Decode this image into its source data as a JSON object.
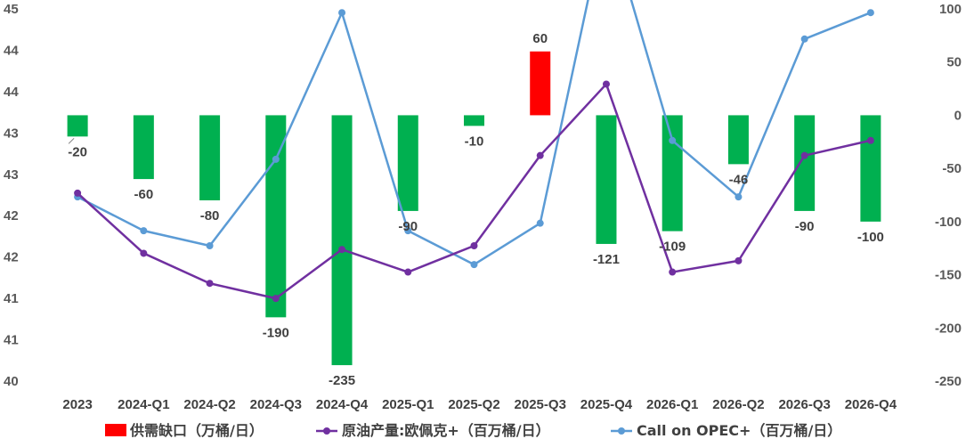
{
  "chart_data": {
    "type": "bar",
    "categories": [
      "2023",
      "2024-Q1",
      "2024-Q2",
      "2024-Q3",
      "2024-Q4",
      "2025-Q1",
      "2025-Q2",
      "2025-Q3",
      "2025-Q4",
      "2026-Q1",
      "2026-Q2",
      "2026-Q3",
      "2026-Q4"
    ],
    "left_axis": {
      "ticks": [
        "45",
        "44",
        "44",
        "43",
        "43",
        "42",
        "42",
        "41",
        "41",
        "40"
      ],
      "ylim": [
        40,
        44.95
      ]
    },
    "right_axis": {
      "ticks": [
        "100",
        "50",
        "0",
        "-50",
        "-100",
        "-150",
        "-200",
        "-250"
      ],
      "ylim": [
        -250,
        100
      ]
    },
    "series": [
      {
        "name": "供需缺口（万桶/日）",
        "type": "bar",
        "axis": "right",
        "values": [
          -20,
          -60,
          -80,
          -190,
          -235,
          -90,
          -10,
          60,
          -121,
          -109,
          -46,
          -90,
          -100
        ],
        "data_labels": [
          "-20",
          "-60",
          "-80",
          "-190",
          "-235",
          "-90",
          "-10",
          "60",
          "-121",
          "-109",
          "-46",
          "-90",
          "-100"
        ],
        "color_negative": "#00B050",
        "color_positive": "#FF0000"
      },
      {
        "name": "原油产量:欧佩克+（百万桶/日）",
        "type": "line",
        "axis": "left",
        "values": [
          42.5,
          41.7,
          41.3,
          41.1,
          41.75,
          41.45,
          41.8,
          43.0,
          43.95,
          41.45,
          41.6,
          43.0,
          43.2
        ],
        "color": "#7030A0"
      },
      {
        "name": "Call on OPEC+（百万桶/日）",
        "type": "line",
        "axis": "left",
        "values": [
          42.45,
          42.0,
          41.8,
          42.95,
          44.9,
          42.0,
          41.55,
          42.1,
          46.2,
          43.2,
          42.45,
          44.55,
          44.9
        ],
        "color": "#5B9BD5"
      }
    ],
    "legend_position": "bottom",
    "grid": false
  }
}
